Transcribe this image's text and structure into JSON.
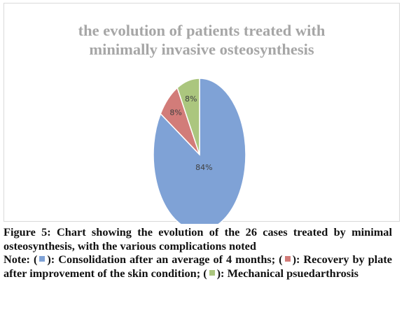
{
  "chart_data": {
    "type": "pie",
    "title": "the evolution of patients treated with minimally invasive osteosynthesis",
    "categories": [
      "Consolidation after an average of 4 months",
      "Recovery by plate after improvement of the skin condition",
      "Mechanical psuedarthrosis"
    ],
    "values": [
      84,
      8,
      8
    ],
    "value_labels": [
      "84%",
      "8%",
      "8%"
    ],
    "colors": [
      "#7fa2d6",
      "#d27c79",
      "#abc67e"
    ]
  },
  "caption": {
    "label": "Figure 5:",
    "text": "Chart showing the evolution of the 26 cases treated by minimal osteosynthesis, with the various complications noted"
  },
  "note": {
    "label": "Note:"
  }
}
